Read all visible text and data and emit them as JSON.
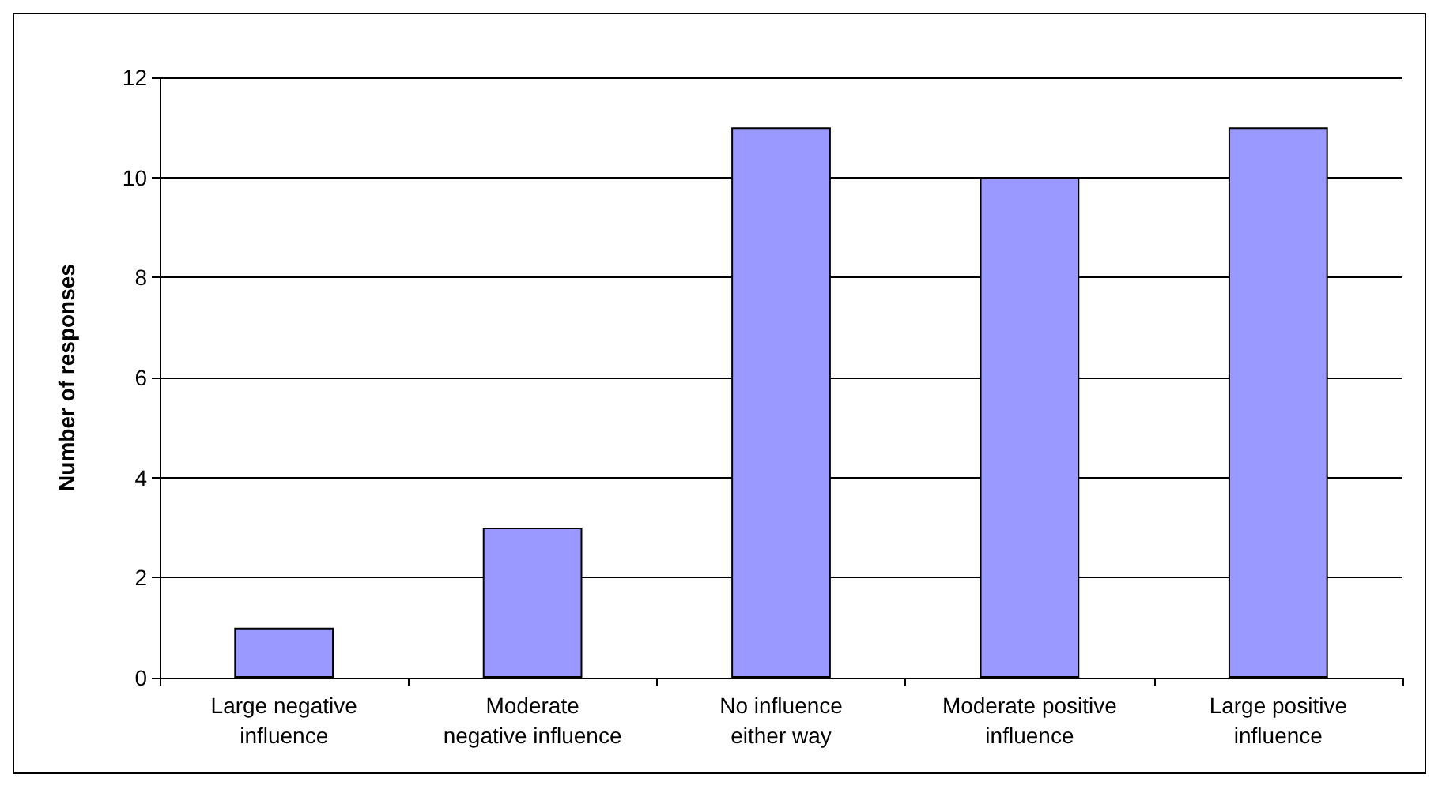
{
  "chart_data": {
    "type": "bar",
    "ylabel": "Number of responses",
    "categories": [
      "Large negative\ninfluence",
      "Moderate\nnegative influence",
      "No influence\neither way",
      "Moderate positive\ninfluence",
      "Large positive\ninfluence"
    ],
    "values": [
      1,
      3,
      11,
      10,
      11
    ],
    "color": "#9999ff",
    "ylim": [
      0,
      12
    ],
    "yticks": [
      0,
      2,
      4,
      6,
      8,
      10,
      12
    ],
    "grid": "y"
  }
}
